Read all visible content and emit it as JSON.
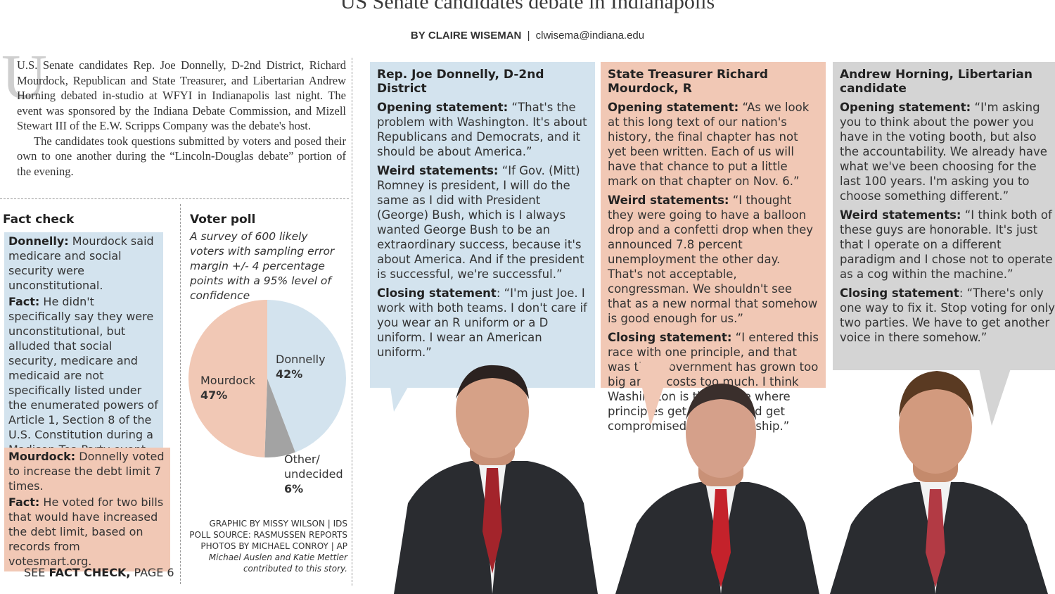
{
  "headline": "US Senate candidates debate in Indianapolis",
  "byline": {
    "prefix": "BY",
    "author": "CLAIRE WISEMAN",
    "separator": "|",
    "email": "clwisema@indiana.edu"
  },
  "intro": {
    "drop_cap": "U",
    "paragraphs": [
      "U.S. Senate candidates Rep. Joe Donnelly, D-2nd District, Richard Mourdock, Republican and State Treasurer, and Libertarian Andrew Horning debated in-studio at WFYI in Indianapolis last night. The event was sponsored by the Indiana Debate Commission, and Mizell Stewart III of the E.W. Scripps Company was the debate's host.",
      "The candidates took questions submitted by voters and posed their own to one another during the “Lincoln-Douglas debate” portion of the evening."
    ]
  },
  "fact_check": {
    "title": "Fact check",
    "items": [
      {
        "claim_label": "Donnelly:",
        "claim": "Mourdock said medicare and social security were unconstitutional.",
        "fact_label": "Fact:",
        "fact": "He didn't specifically say they were unconstitutional, but alluded that social security, medicare and medicaid are not specifically listed under the enumerated powers of Article 1, Section 8 of the U.S. Constitution during a Madison Tea Party event in southern Indiana."
      },
      {
        "claim_label": "Mourdock:",
        "claim": "Donnelly voted to increase the debt limit 7 times.",
        "fact_label": "Fact:",
        "fact": "He voted for two bills that would have increased the debt limit, based on records from votesmart.org."
      }
    ],
    "see_prefix": "SEE",
    "see_bold": "FACT CHECK,",
    "see_page": "PAGE 6"
  },
  "voter_poll": {
    "title": "Voter poll",
    "description": "A survey of 600 likely voters with sampling error margin +/- 4 percentage points with a 95% level of confidence"
  },
  "chart_data": {
    "type": "pie",
    "title": "Voter poll",
    "categories": [
      "Mourdock",
      "Donnelly",
      "Other/ undecided"
    ],
    "values": [
      47,
      42,
      6
    ],
    "value_labels": [
      "47%",
      "42%",
      "6%"
    ],
    "colors": [
      "#f1c8b5",
      "#d3e3ee",
      "#a3a3a3"
    ]
  },
  "credits": {
    "graphic": "GRAPHIC BY MISSY WILSON | IDS",
    "poll_source": "POLL SOURCE: RASMUSSEN REPORTS",
    "photos": "PHOTOS BY MICHAEL CONROY | AP",
    "contrib": "Michael Auslen and Katie Mettler contributed to this story."
  },
  "candidates": [
    {
      "name": "Rep. Joe Donnelly, D-2nd District",
      "color": "#d3e3ee",
      "statements": [
        {
          "label": "Opening statement:",
          "text": " “That's the problem with Washington. It's about Republicans and Democrats, and it should be about America.”"
        },
        {
          "label": "Weird statements:",
          "text": " “If Gov. (Mitt) Romney is president, I will do the same as I did with President (George) Bush, which is I always wanted George Bush to be an extraordinary success, because it's about America. And if the president is successful, we're successful.”"
        },
        {
          "label": "Closing statement",
          "text": ": “I'm just Joe. I work with both teams. I don't care if you wear an R uniform or a D uniform. I wear an American uniform.”"
        }
      ]
    },
    {
      "name": "State Treasurer Richard Mourdock, R",
      "color": "#f1c8b5",
      "statements": [
        {
          "label": "Opening statement:",
          "text": " “As we look at this long text of our nation's history, the final chapter has not yet been written. Each of us will have that chance to put a little mark on that chapter on Nov. 6.”"
        },
        {
          "label": "Weird statements:",
          "text": " “I thought they were going to have a balloon drop and a confetti drop when they announced 7.8 percent unemployment the other day. That's not acceptable, congressman. We shouldn't see that as a new normal that somehow is good enough for us.”"
        },
        {
          "label": "Closing statement:",
          "text": " “I entered this race with one principle, and that was that government has grown too big and it costs too much. I think Washington is that place where principles get crushed and get compromised by partisanship.”"
        }
      ]
    },
    {
      "name": "Andrew Horning, Libertarian candidate",
      "color": "#d4d4d4",
      "statements": [
        {
          "label": "Opening statement:",
          "text": " “I'm asking you to think about the power you have in the voting booth, but also the accountability. We already have what we've been choosing for the last 100 years. I'm asking you to choose something different.”"
        },
        {
          "label": "Weird statements:",
          "text": " “I think both of these guys are honorable. It's just that I operate on a different paradigm and I chose not to operate as a cog within the machine.”"
        },
        {
          "label": "Closing statement",
          "text": ": “There's only one way to fix it. Stop voting for only two parties. We have to get another voice in there somehow.”"
        }
      ]
    }
  ]
}
